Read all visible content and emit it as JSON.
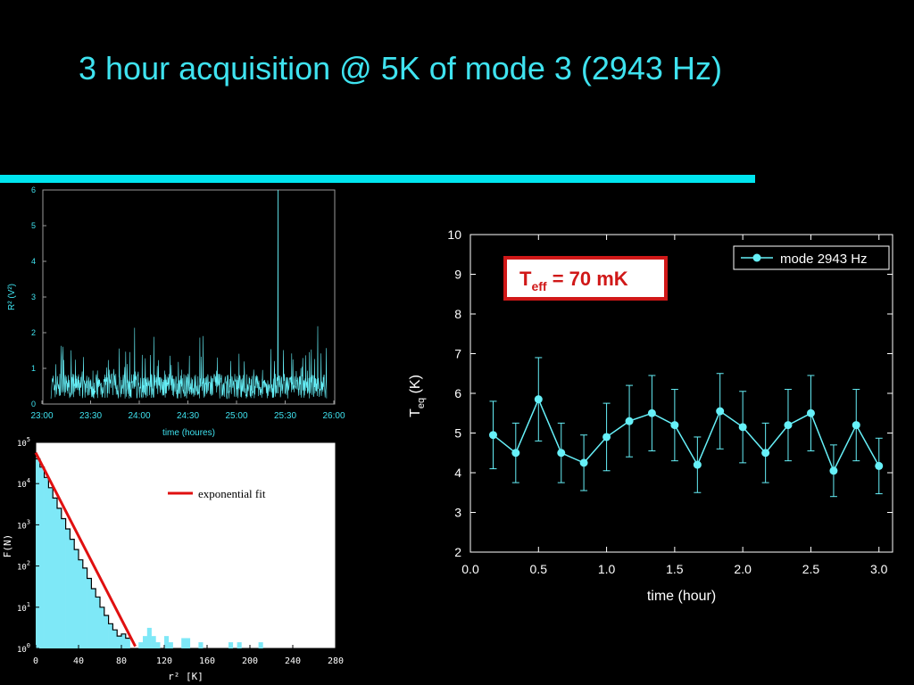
{
  "slide": {
    "title": "3 hour acquisition @ 5K of mode 3 (2943 Hz)",
    "colors": {
      "title": "#3fe3f0",
      "rule": "#00e5ef",
      "cyan": "#66f0f8",
      "fit": "#e01010",
      "box": "#d01818"
    }
  },
  "chart_data": [
    {
      "id": "timeseries",
      "type": "line",
      "xlabel": "time (houres)",
      "ylabel": "R² (V²)",
      "x_ticks": [
        "23:00",
        "23:30",
        "24:00",
        "24:30",
        "25:00",
        "25:30",
        "26:00"
      ],
      "y_ticks": [
        "0",
        "1",
        "2",
        "3",
        "4",
        "5",
        "6"
      ],
      "xlim": [
        0,
        180
      ],
      "ylim": [
        0,
        6
      ],
      "x_unit": "minutes after 23:00",
      "series": [
        {
          "values_summary": "noise mostly 0.1–1.2 with occasional spikes up to ~2.3, one spike to ~6.0 near 25:25"
        }
      ],
      "spike": {
        "x": 145,
        "y": 6.0
      }
    },
    {
      "id": "histogram",
      "type": "bar",
      "xlabel": "r² [K]",
      "ylabel": "F(N)",
      "x_ticks": [
        "0",
        "40",
        "80",
        "120",
        "160",
        "200",
        "240",
        "280"
      ],
      "y_ticks": [
        {
          "base": "10",
          "exp": "0"
        },
        {
          "base": "10",
          "exp": "1"
        },
        {
          "base": "10",
          "exp": "2"
        },
        {
          "base": "10",
          "exp": "3"
        },
        {
          "base": "10",
          "exp": "4"
        },
        {
          "base": "10",
          "exp": "5"
        }
      ],
      "xlim": [
        0,
        280
      ],
      "ylim_log10": [
        0,
        5
      ],
      "bin_width": 4,
      "bins_log10": [
        4.6,
        4.4,
        4.15,
        3.9,
        3.65,
        3.4,
        3.15,
        2.9,
        2.65,
        2.4,
        2.15,
        1.95,
        1.7,
        1.45,
        1.25,
        1.0,
        0.8,
        0.6,
        0.45,
        0.3,
        0.35,
        0.25,
        0,
        0,
        0.15,
        0.3,
        0.5,
        0.3,
        0.15,
        0,
        0.3,
        0.15,
        0,
        0,
        0.25,
        0.25,
        0,
        0,
        0.15,
        0,
        0,
        0,
        0,
        0,
        0,
        0.15,
        0,
        0.15,
        0,
        0,
        0,
        0,
        0.15,
        0,
        0,
        0,
        0,
        0,
        0,
        0,
        0,
        0,
        0,
        0,
        0,
        0,
        0,
        0,
        0,
        0
      ],
      "fit": {
        "label": "exponential fit",
        "from": [
          0,
          4.75
        ],
        "to": [
          93,
          0.05
        ]
      }
    },
    {
      "id": "teq",
      "type": "line",
      "xlabel": "time (hour)",
      "ylabel": "T",
      "ylabel_sub": "eq",
      "ylabel_unit": " (K)",
      "xlim": [
        0,
        3.1
      ],
      "ylim": [
        2,
        10
      ],
      "x_ticks": [
        "0.0",
        "0.5",
        "1.0",
        "1.5",
        "2.0",
        "2.5",
        "3.0"
      ],
      "y_ticks": [
        "2",
        "3",
        "4",
        "5",
        "6",
        "7",
        "8",
        "9",
        "10"
      ],
      "legend": "mode 2943 Hz",
      "legend_position": "top-right",
      "series": [
        {
          "name": "mode 2943 Hz",
          "x": [
            0.167,
            0.333,
            0.5,
            0.667,
            0.833,
            1.0,
            1.167,
            1.333,
            1.5,
            1.667,
            1.833,
            2.0,
            2.167,
            2.333,
            2.5,
            2.667,
            2.833,
            3.0
          ],
          "y": [
            4.95,
            4.5,
            5.85,
            4.5,
            4.25,
            4.9,
            5.3,
            5.5,
            5.2,
            4.2,
            5.55,
            5.15,
            4.5,
            5.2,
            5.5,
            4.05,
            5.2,
            4.17
          ],
          "err": [
            0.85,
            0.75,
            1.05,
            0.75,
            0.7,
            0.85,
            0.9,
            0.95,
            0.9,
            0.7,
            0.95,
            0.9,
            0.75,
            0.9,
            0.95,
            0.65,
            0.9,
            0.7
          ]
        }
      ],
      "annotation": {
        "main": "T",
        "sub": "eff",
        "rest": " = 70 mK"
      }
    }
  ]
}
